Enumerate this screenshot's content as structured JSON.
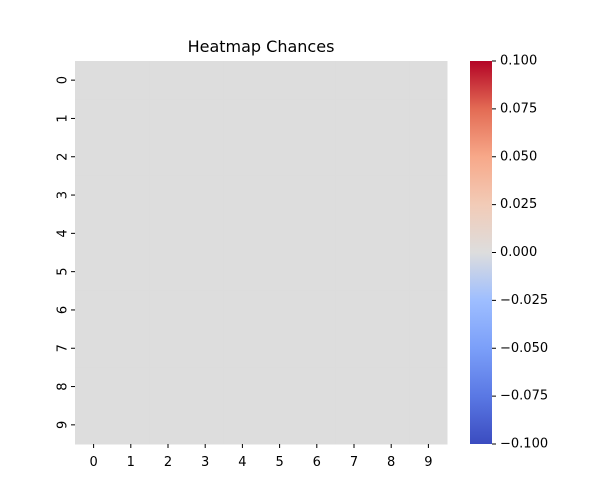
{
  "chart_data": {
    "type": "heatmap",
    "title": "Heatmap Chances",
    "x_categories": [
      "0",
      "1",
      "2",
      "3",
      "4",
      "5",
      "6",
      "7",
      "8",
      "9"
    ],
    "y_categories": [
      "0",
      "1",
      "2",
      "3",
      "4",
      "5",
      "6",
      "7",
      "8",
      "9"
    ],
    "values": [
      [
        0,
        0,
        0,
        0,
        0,
        0,
        0,
        0,
        0,
        0
      ],
      [
        0,
        0,
        0,
        0,
        0,
        0,
        0,
        0,
        0,
        0
      ],
      [
        0,
        0,
        0,
        0,
        0,
        0,
        0,
        0,
        0,
        0
      ],
      [
        0,
        0,
        0,
        0,
        0,
        0,
        0,
        0,
        0,
        0
      ],
      [
        0,
        0,
        0,
        0,
        0,
        0,
        0,
        0,
        0,
        0
      ],
      [
        0,
        0,
        0,
        0,
        0,
        0,
        0,
        0,
        0,
        0
      ],
      [
        0,
        0,
        0,
        0,
        0,
        0,
        0,
        0,
        0,
        0
      ],
      [
        0,
        0,
        0,
        0,
        0,
        0,
        0,
        0,
        0,
        0
      ],
      [
        0,
        0,
        0,
        0,
        0,
        0,
        0,
        0,
        0,
        0
      ],
      [
        0,
        0,
        0,
        0,
        0,
        0,
        0,
        0,
        0,
        0
      ]
    ],
    "colormap": "coolwarm",
    "colorbar": {
      "range": [
        -0.1,
        0.1
      ],
      "ticks": [
        0.1,
        0.075,
        0.05,
        0.025,
        0.0,
        -0.025,
        -0.05,
        -0.075,
        -0.1
      ],
      "tick_labels": [
        "0.100",
        "0.075",
        "0.050",
        "0.025",
        "0.000",
        "−0.025",
        "−0.050",
        "−0.075",
        "−0.100"
      ]
    },
    "colors": {
      "low": "#3b4cc0",
      "mid": "#dddddd",
      "high": "#b40426"
    }
  }
}
